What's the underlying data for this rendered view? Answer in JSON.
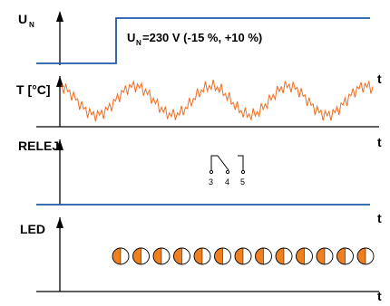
{
  "un_panel": {
    "label_main": "U",
    "label_sub": "N",
    "axis_t": "t",
    "annotation_main": "U",
    "annotation_sub": "N",
    "annotation_rest": "=230 V (-15 %, +10 %)"
  },
  "temp_panel": {
    "label": "T [°C]",
    "axis_t": "t"
  },
  "relay_panel": {
    "label": "RELEJ",
    "axis_t": "t",
    "contacts": [
      "3",
      "4",
      "5"
    ]
  },
  "led_panel": {
    "label": "LED",
    "axis_t": "t",
    "led_count": 13
  },
  "colors": {
    "signal": "#1f5aa6",
    "temperature": "#f26b1d",
    "led_fill": "#f07f1e",
    "axis": "#000000"
  }
}
